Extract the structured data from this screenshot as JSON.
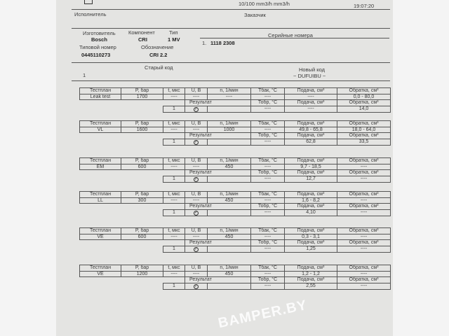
{
  "header_top": {
    "flow_units": "10/100 mm3/h mm3/h",
    "time": "19:07:20"
  },
  "parties": {
    "executor": "Исполнитель",
    "customer": "Заказчик"
  },
  "component": {
    "manufacturer_label": "Изготовитель",
    "manufacturer": "Bosch",
    "component_label": "Компонент",
    "component": "CRI",
    "type_label": "Тип",
    "type": "1 MV",
    "type_number_label": "Типовой номер",
    "type_number": "0445110273",
    "designation_label": "Обозначение",
    "designation": "CRI 2.2",
    "serials_label": "Серийные номера",
    "serial_index": "1.",
    "serial": "1118 2308"
  },
  "codes": {
    "old_label": "Старый код",
    "old_value": "1",
    "new_label": "Новый код",
    "new_value": "~ DUFUIBU ~"
  },
  "headers": {
    "plan": "Тестплан",
    "p": "P, бар",
    "t": "t, мкс",
    "u": "U, B",
    "n": "n, 1/мин",
    "tbak": "Tбак, °C",
    "supply": "Подача, см³",
    "return": "Обратка, см³",
    "result": "Результат",
    "tobr": "Тобр, °C"
  },
  "tests": [
    {
      "plan": "Leak test",
      "p": "1700",
      "t": "----",
      "u": "----",
      "n": "----",
      "tbak": "----",
      "supply_range": "----",
      "return_range": "0,0 - 80,0",
      "res_dash": "----",
      "count": "1",
      "tobr": "----",
      "supply": "----",
      "return": "14,0"
    },
    {
      "plan": "VL",
      "p": "1600",
      "t": "----",
      "u": "----",
      "n": "1000",
      "tbak": "----",
      "supply_range": "49,8 - 65,8",
      "return_range": "18,0 - 64,0",
      "res_dash": "----",
      "count": "1",
      "tobr": "----",
      "supply": "62,8",
      "return": "33,5"
    },
    {
      "plan": "EM",
      "p": "600",
      "t": "----",
      "u": "----",
      "n": "450",
      "tbak": "----",
      "supply_range": "9,7 - 18,5",
      "return_range": "----",
      "res_dash": "----",
      "count": "1",
      "tobr": "----",
      "supply": "12,7",
      "return": "----"
    },
    {
      "plan": "LL",
      "p": "300",
      "t": "----",
      "u": "----",
      "n": "450",
      "tbak": "----",
      "supply_range": "1,6 - 8,2",
      "return_range": "----",
      "res_dash": "----",
      "count": "1",
      "tobr": "----",
      "supply": "4,10",
      "return": "----"
    },
    {
      "plan": "VE",
      "p": "600",
      "t": "----",
      "u": "----",
      "n": "450",
      "tbak": "----",
      "supply_range": "0,3 - 3,1",
      "return_range": "----",
      "res_dash": "----",
      "count": "1",
      "tobr": "----",
      "supply": "1,25",
      "return": "----"
    },
    {
      "plan": "VE",
      "p": "1200",
      "t": "----",
      "u": "----",
      "n": "450",
      "tbak": "----",
      "supply_range": "1,2 - 1,2",
      "return_range": "----",
      "res_dash": "----",
      "count": "1",
      "tobr": "----",
      "supply": "2,55",
      "return": "----"
    }
  ],
  "watermark": "BAMPER.BY"
}
